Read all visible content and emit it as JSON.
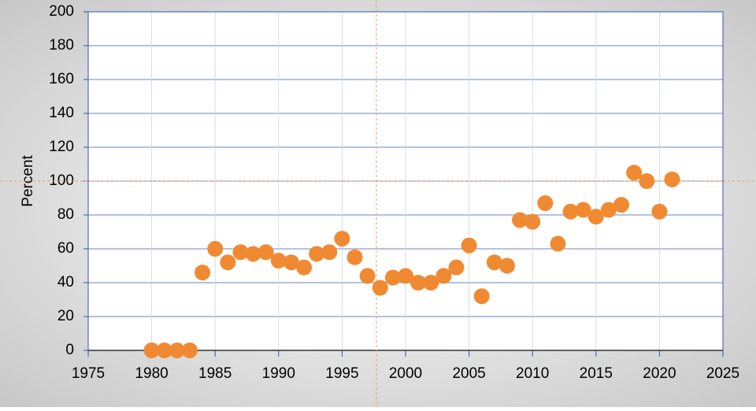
{
  "chart_data": {
    "type": "scatter",
    "y_label": "Percent",
    "series": [
      {
        "color": "#f08a32",
        "x": [
          1980,
          1981,
          1982,
          1983,
          1984,
          1985,
          1986,
          1987,
          1988,
          1989,
          1990,
          1991,
          1992,
          1993,
          1994,
          1995,
          1996,
          1997,
          1998,
          1999,
          2000,
          2001,
          2002,
          2003,
          2004,
          2005,
          2006,
          2007,
          2008,
          2009,
          2010,
          2011,
          2012,
          2013,
          2014,
          2015,
          2016,
          2017,
          2018,
          2019,
          2020,
          2021
        ],
        "values": [
          0,
          0,
          0,
          0,
          46,
          60,
          52,
          58,
          57,
          58,
          53,
          52,
          49,
          57,
          58,
          66,
          55,
          44,
          37,
          43,
          44,
          40,
          40,
          44,
          49,
          62,
          32,
          52,
          50,
          77,
          76,
          87,
          63,
          82,
          83,
          79,
          83,
          86,
          105,
          100,
          82,
          101
        ]
      }
    ],
    "xlim": [
      1975,
      2025
    ],
    "xticks": [
      1975,
      1980,
      1985,
      1990,
      1995,
      2000,
      2005,
      2010,
      2015,
      2020,
      2025
    ],
    "ylim": [
      0,
      200
    ],
    "yticks": [
      0,
      20,
      40,
      60,
      80,
      100,
      120,
      140,
      160,
      180,
      200
    ],
    "grid": true,
    "crosshair": {
      "x": 1997.7,
      "y": 100
    }
  }
}
